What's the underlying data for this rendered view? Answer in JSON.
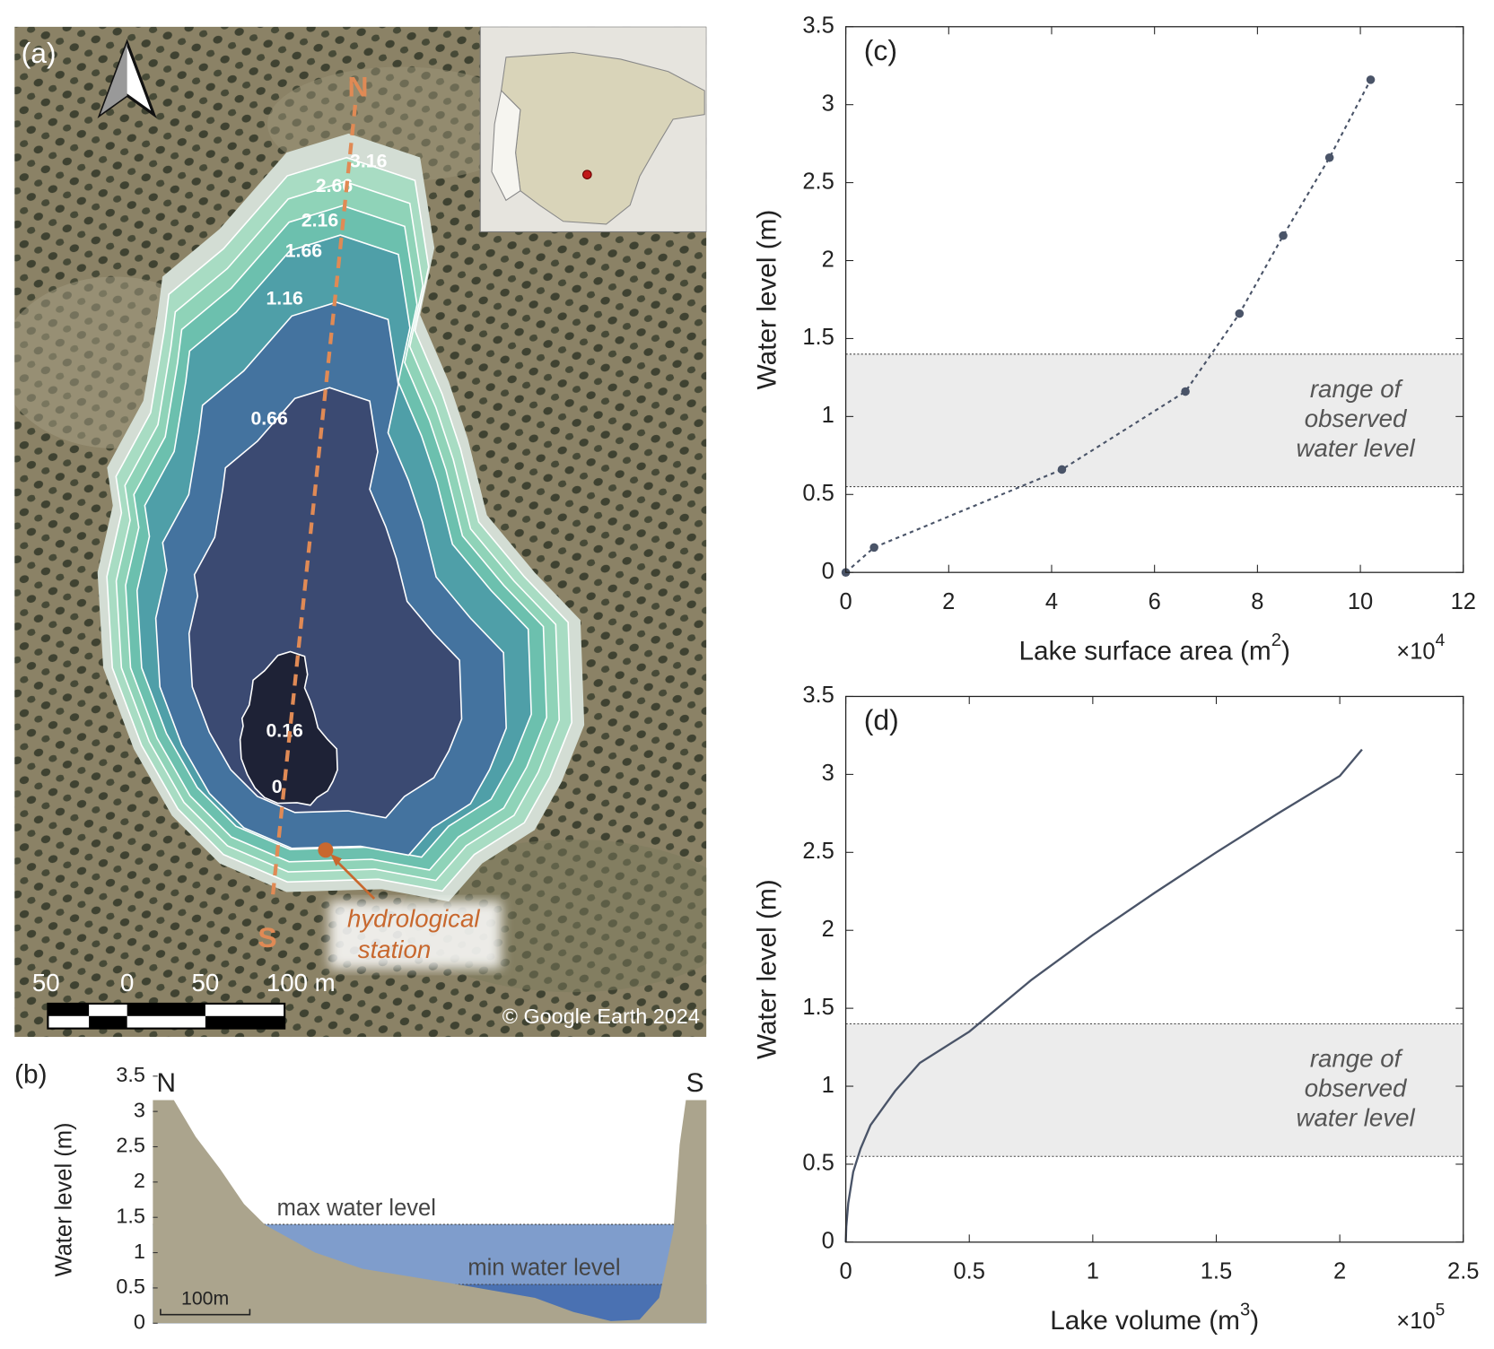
{
  "map": {
    "panel": "(a)",
    "north": "N",
    "south": "S",
    "contours": [
      "3.16",
      "2.66",
      "2.16",
      "1.66",
      "1.16",
      "0.66",
      "0.16",
      "0"
    ],
    "station": [
      "hydrological",
      "station"
    ],
    "credit": "© Google Earth 2024",
    "scale_labels": [
      "50",
      "0",
      "50",
      "100 m"
    ]
  },
  "chart_data": [
    {
      "type": "area",
      "panel": "(b)",
      "ylabel": "Water level (m)",
      "ylim": [
        0,
        3.5
      ],
      "yticks": [
        0,
        0.5,
        1,
        1.5,
        2,
        2.5,
        3,
        3.5
      ],
      "xlim": [
        0,
        620
      ],
      "x": [
        0,
        23.5,
        48,
        75,
        102,
        126,
        182,
        235,
        332,
        428,
        471,
        513,
        545,
        567,
        583,
        590,
        597,
        620
      ],
      "values": [
        3.16,
        3.16,
        2.64,
        2.19,
        1.69,
        1.39,
        1.0,
        0.77,
        0.57,
        0.36,
        0.16,
        0.03,
        0.05,
        0.36,
        1.31,
        2.53,
        3.16,
        3.16
      ],
      "levels": [
        {
          "name": "max water level",
          "value": 1.4
        },
        {
          "name": "min water level",
          "value": 0.55
        }
      ],
      "ends": [
        "N",
        "S"
      ],
      "scale_bar": {
        "label": "100m",
        "length": 100
      }
    },
    {
      "type": "line",
      "markers": true,
      "panel": "(c)",
      "ylabel": "Water level (m)",
      "xlabel": {
        "text": "Lake surface area (m",
        "sup": "2",
        "end": ")"
      },
      "x_multiplier": {
        "text": "×10",
        "sup": "4"
      },
      "xlim": [
        0,
        12
      ],
      "xticks": [
        0,
        2,
        4,
        6,
        8,
        10,
        12
      ],
      "ylim": [
        0,
        3.5
      ],
      "yticks": [
        0,
        0.5,
        1,
        1.5,
        2,
        2.5,
        3,
        3.5
      ],
      "x": [
        0,
        0.55,
        4.2,
        6.6,
        7.65,
        8.5,
        9.4,
        10.2
      ],
      "values": [
        0,
        0.16,
        0.66,
        1.16,
        1.66,
        2.16,
        2.66,
        3.16
      ],
      "color": "#4a5468",
      "band": [
        0.55,
        1.4
      ],
      "band_label": [
        "range of",
        "observed",
        "water level"
      ]
    },
    {
      "type": "line",
      "markers": false,
      "panel": "(d)",
      "ylabel": "Water level (m)",
      "xlabel": {
        "text": "Lake volume (m",
        "sup": "3",
        "end": ")"
      },
      "x_multiplier": {
        "text": "×10",
        "sup": "5"
      },
      "xlim": [
        0,
        2.5
      ],
      "xticks": [
        0,
        0.5,
        1,
        1.5,
        2,
        2.5
      ],
      "ylim": [
        0,
        3.5
      ],
      "yticks": [
        0,
        0.5,
        1,
        1.5,
        2,
        2.5,
        3,
        3.5
      ],
      "x": [
        0,
        0.002,
        0.01,
        0.03,
        0.06,
        0.1,
        0.2,
        0.3,
        0.5,
        0.75,
        1,
        1.25,
        1.5,
        1.75,
        2,
        2.09
      ],
      "values": [
        0,
        0.1,
        0.25,
        0.45,
        0.6,
        0.75,
        0.97,
        1.15,
        1.35,
        1.68,
        1.97,
        2.24,
        2.5,
        2.75,
        2.99,
        3.16
      ],
      "color": "#4a5468",
      "band": [
        0.55,
        1.4
      ],
      "band_label": [
        "range of",
        "observed",
        "water level"
      ]
    }
  ]
}
